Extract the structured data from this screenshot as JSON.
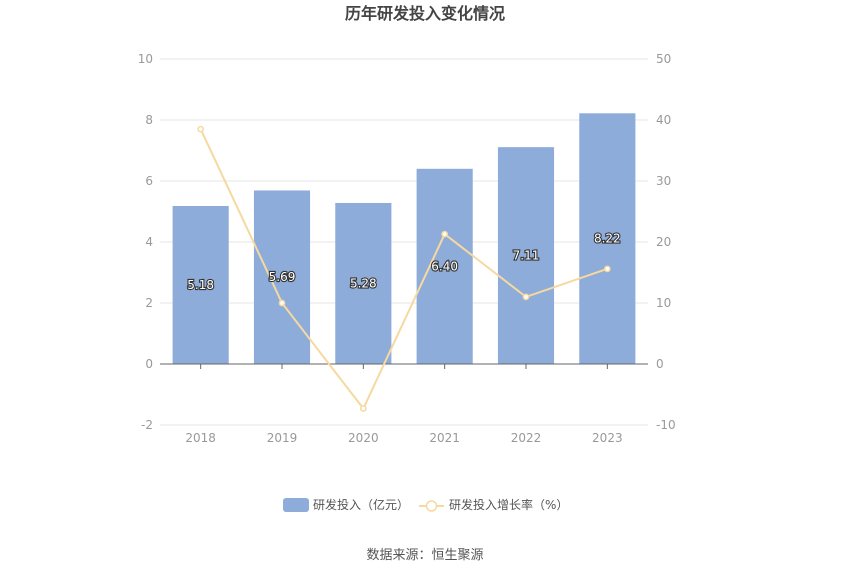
{
  "chart_data": {
    "type": "bar",
    "title": "历年研发投入变化情况",
    "categories": [
      "2018",
      "2019",
      "2020",
      "2021",
      "2022",
      "2023"
    ],
    "series": [
      {
        "name": "研发投入（亿元）",
        "type": "bar",
        "axis": "left",
        "values": [
          5.18,
          5.69,
          5.28,
          6.4,
          7.11,
          8.22
        ],
        "labels": [
          "5.18",
          "5.69",
          "5.28",
          "6.40",
          "7.11",
          "8.22"
        ],
        "color": "#8eacd9"
      },
      {
        "name": "研发投入增长率（%）",
        "type": "line",
        "axis": "right",
        "values": [
          38.5,
          10.0,
          -7.3,
          21.3,
          11.0,
          15.6
        ],
        "color": "#f5d9a0"
      }
    ],
    "y_left": {
      "ticks": [
        "10",
        "8",
        "6",
        "4",
        "2",
        "0",
        "-2"
      ],
      "range": [
        -2,
        10
      ]
    },
    "y_right": {
      "ticks": [
        "50",
        "40",
        "30",
        "20",
        "10",
        "0",
        "-10"
      ],
      "range": [
        -10,
        50
      ]
    },
    "grid": true,
    "legend": "bottom-center"
  },
  "source_text": "数据来源：恒生聚源"
}
